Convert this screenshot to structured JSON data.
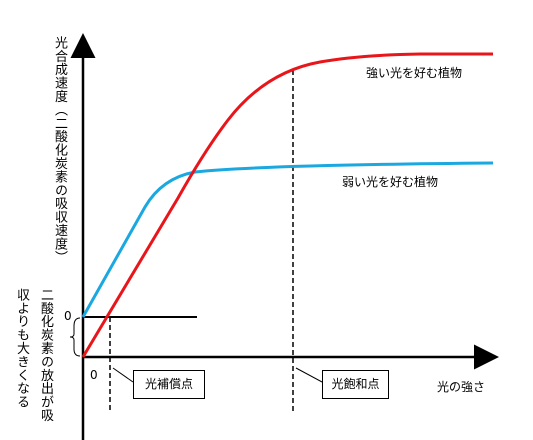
{
  "axis": {
    "y_label": "光合成速度（二酸化炭素の吸収速度）",
    "x_label": "光の強さ",
    "zero_y": "0",
    "zero_x": "0"
  },
  "curves": {
    "strong": "強い光を好む植物",
    "weak": "弱い光を好む植物"
  },
  "note": {
    "lines": [
      "二酸化炭素の放出が吸",
      "収よりも大きくなる"
    ]
  },
  "points": {
    "compensation": "光補償点",
    "saturation": "光飽和点"
  }
}
